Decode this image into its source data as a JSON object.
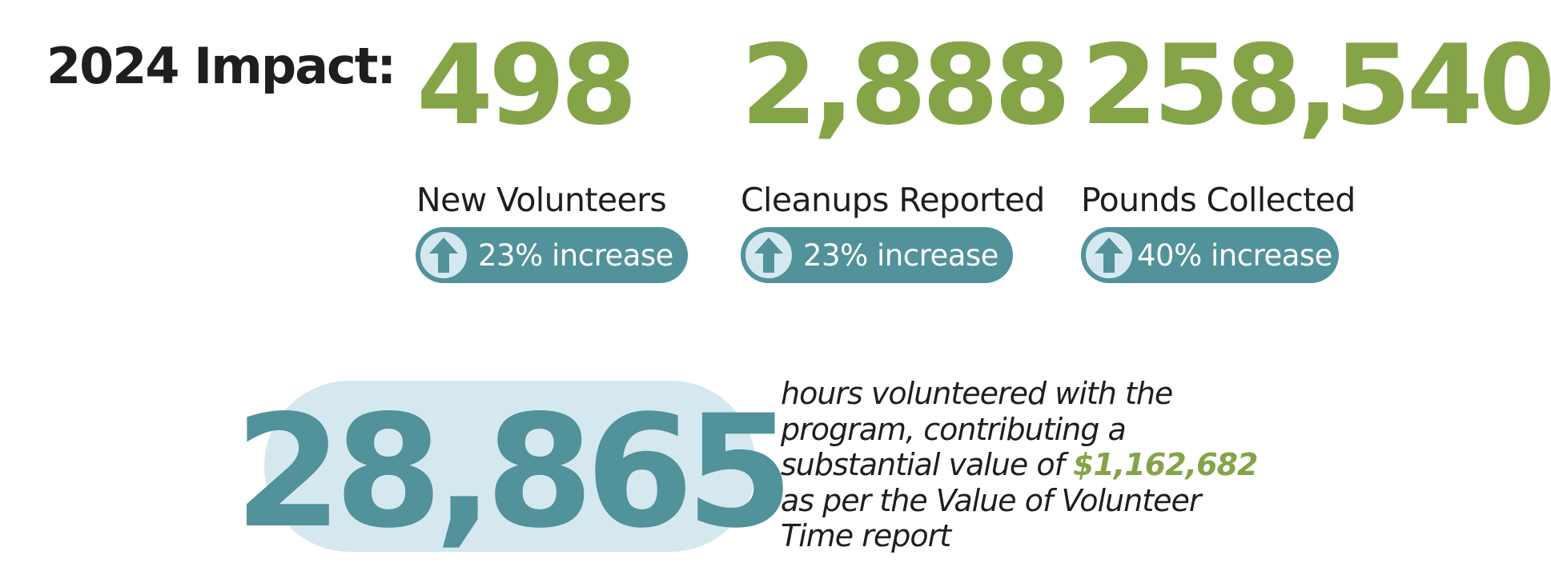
{
  "heading": "2024 Impact:",
  "stats": [
    {
      "number": "498",
      "label": "New Volunteers",
      "change": "23% increase"
    },
    {
      "number": "2,888",
      "label": "Cleanups Reported",
      "change": "23% increase"
    },
    {
      "number": "258,540",
      "label": "Pounds Collected",
      "change": "40% increase"
    }
  ],
  "hours": {
    "number": "28,865",
    "line1": "hours volunteered with the",
    "line2": "program, contributing a",
    "line3_before": "substantial value of ",
    "value": "$1,162,682",
    "line4": "as per the Value of Volunteer",
    "line5": "Time report"
  },
  "icons": {
    "increase": "up-arrow-icon"
  },
  "colors": {
    "green": "#84a447",
    "teal": "#51929b",
    "light_blue": "#d5e8f0",
    "text": "#1e1e1e"
  }
}
